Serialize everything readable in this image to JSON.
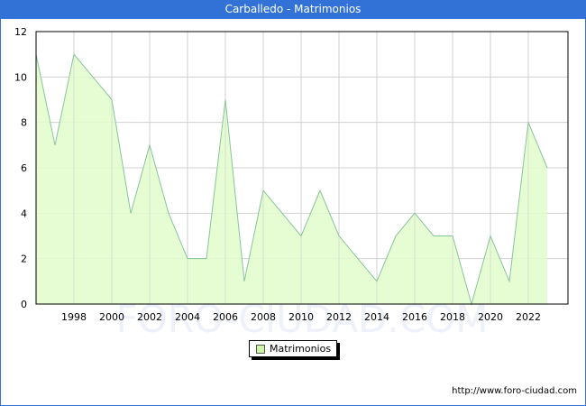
{
  "header": {
    "title": "Carballedo - Matrimonios"
  },
  "legend": {
    "items": [
      {
        "label": "Matrimonios",
        "color": "#ccf5a4"
      }
    ]
  },
  "footer": {
    "url_text": "http://www.foro-ciudad.com"
  },
  "watermark": "FORO-CIUDAD.COM",
  "colors": {
    "title_bar": "#3272d6",
    "area_fill": "#e2fdcc",
    "line": "#88c49a",
    "grid": "#d0d0d0"
  },
  "chart_data": {
    "type": "area",
    "title": "Carballedo - Matrimonios",
    "xlabel": "",
    "ylabel": "",
    "x": [
      1996,
      1997,
      1998,
      1999,
      2000,
      2001,
      2002,
      2003,
      2004,
      2005,
      2006,
      2007,
      2008,
      2009,
      2010,
      2011,
      2012,
      2013,
      2014,
      2015,
      2016,
      2017,
      2018,
      2019,
      2020,
      2021,
      2022,
      2023
    ],
    "series": [
      {
        "name": "Matrimonios",
        "values": [
          11,
          7,
          11,
          10,
          9,
          4,
          7,
          4,
          2,
          2,
          9,
          1,
          5,
          4,
          3,
          5,
          3,
          2,
          1,
          3,
          4,
          3,
          3,
          0,
          3,
          1,
          8,
          6
        ]
      }
    ],
    "ylim": [
      0,
      12
    ],
    "yticks": [
      0,
      2,
      4,
      6,
      8,
      10,
      12
    ],
    "xticks": [
      1998,
      2000,
      2002,
      2004,
      2006,
      2008,
      2010,
      2012,
      2014,
      2016,
      2018,
      2020,
      2022
    ],
    "grid": true,
    "legend_position": "bottom-center"
  }
}
